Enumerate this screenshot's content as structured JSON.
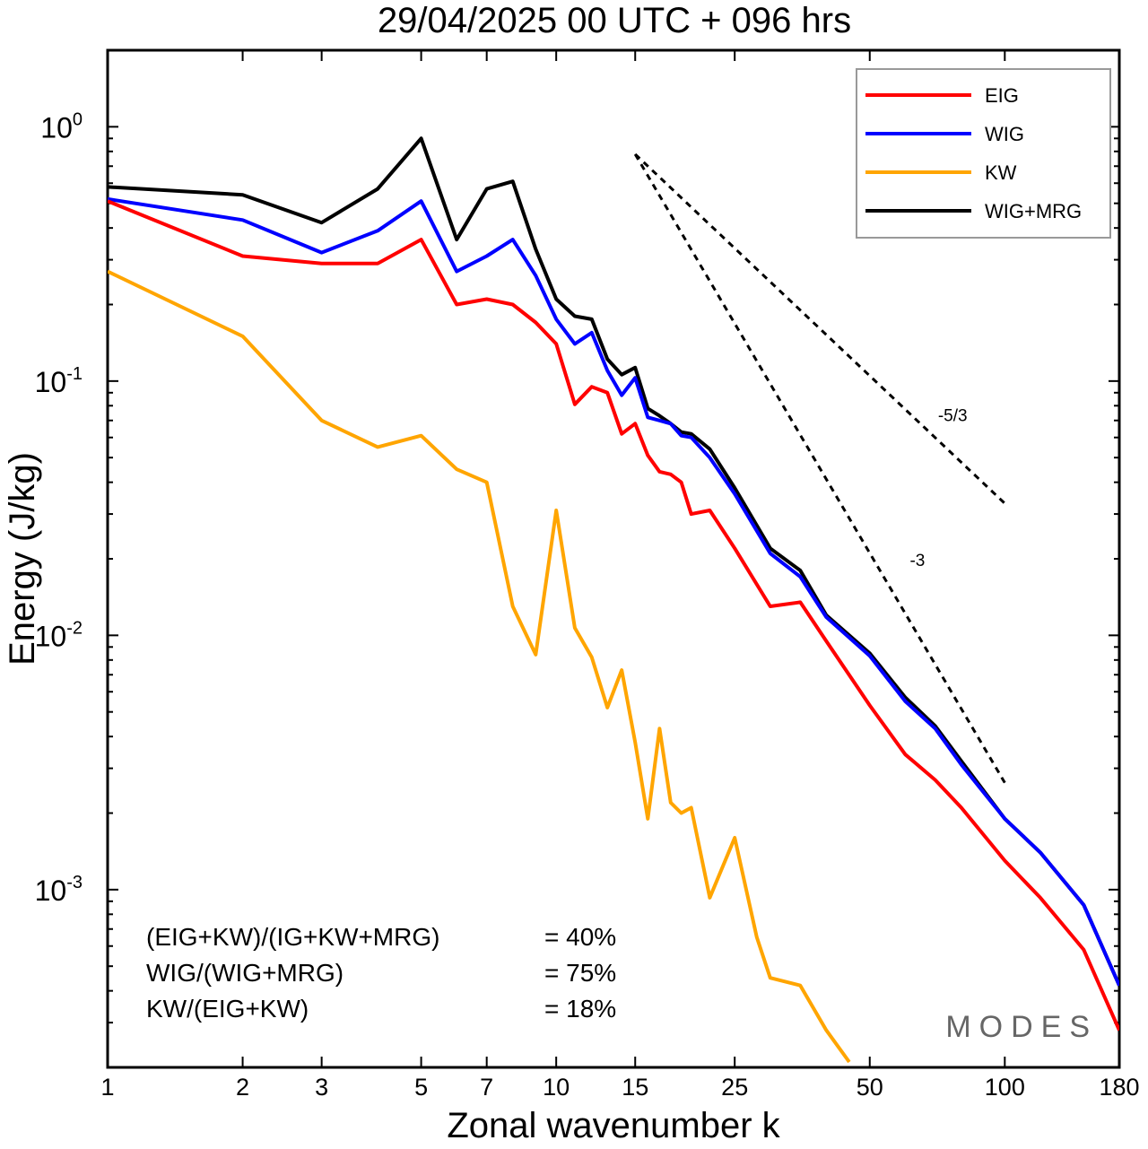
{
  "chart_data": {
    "type": "line",
    "title": "29/04/2025  00 UTC  + 096 hrs",
    "xlabel": "Zonal wavenumber k",
    "ylabel": "Energy (J/kg)",
    "xscale": "log",
    "yscale": "log",
    "xlim": [
      1,
      180
    ],
    "ylim": [
      0.0002,
      2
    ],
    "xticks": [
      1,
      2,
      3,
      5,
      7,
      10,
      15,
      25,
      50,
      100,
      180
    ],
    "xtick_labels": [
      "1",
      "2",
      "3",
      "5",
      "7",
      "10",
      "15",
      "25",
      "50",
      "100",
      "180"
    ],
    "yticks": [
      {
        "value": 1,
        "base": "10",
        "exp": "0"
      },
      {
        "value": 0.1,
        "base": "10",
        "exp": "-1"
      },
      {
        "value": 0.01,
        "base": "10",
        "exp": "-2"
      },
      {
        "value": 0.001,
        "base": "10",
        "exp": "-3"
      }
    ],
    "legend_position": "top-right",
    "series": [
      {
        "name": "EIG",
        "color": "#ff0000",
        "x": [
          1,
          2,
          3,
          4,
          5,
          6,
          7,
          8,
          9,
          10,
          11,
          12,
          13,
          14,
          15,
          16,
          17,
          18,
          19,
          20,
          22,
          25,
          30,
          35,
          40,
          50,
          60,
          70,
          80,
          100,
          120,
          150,
          180
        ],
        "y": [
          0.51,
          0.31,
          0.29,
          0.29,
          0.36,
          0.2,
          0.21,
          0.2,
          0.17,
          0.14,
          0.081,
          0.095,
          0.09,
          0.062,
          0.068,
          0.051,
          0.044,
          0.043,
          0.04,
          0.03,
          0.031,
          0.022,
          0.013,
          0.0135,
          0.0095,
          0.0053,
          0.0034,
          0.0027,
          0.0021,
          0.0013,
          0.00093,
          0.00058,
          0.00028
        ]
      },
      {
        "name": "WIG",
        "color": "#0000ff",
        "x": [
          1,
          2,
          3,
          4,
          5,
          6,
          7,
          8,
          9,
          10,
          11,
          12,
          13,
          14,
          15,
          16,
          17,
          18,
          19,
          20,
          22,
          25,
          30,
          35,
          40,
          50,
          60,
          70,
          80,
          100,
          120,
          150,
          180
        ],
        "y": [
          0.52,
          0.43,
          0.32,
          0.39,
          0.51,
          0.27,
          0.31,
          0.36,
          0.26,
          0.175,
          0.14,
          0.155,
          0.11,
          0.088,
          0.103,
          0.072,
          0.07,
          0.068,
          0.061,
          0.06,
          0.05,
          0.036,
          0.021,
          0.017,
          0.0118,
          0.0083,
          0.0055,
          0.0043,
          0.0031,
          0.0019,
          0.0014,
          0.00087,
          0.00042
        ]
      },
      {
        "name": "KW",
        "color": "#ffa500",
        "x": [
          1,
          2,
          3,
          4,
          5,
          6,
          7,
          8,
          9,
          10,
          11,
          12,
          13,
          14,
          15,
          16,
          17,
          18,
          19,
          20,
          22,
          25,
          28,
          30,
          35,
          40,
          45
        ],
        "y": [
          0.27,
          0.15,
          0.07,
          0.055,
          0.061,
          0.045,
          0.04,
          0.013,
          0.0084,
          0.031,
          0.0107,
          0.0082,
          0.0052,
          0.0073,
          0.0038,
          0.0019,
          0.0043,
          0.0022,
          0.002,
          0.0021,
          0.00093,
          0.0016,
          0.00065,
          0.00045,
          0.00042,
          0.00028,
          0.00021
        ]
      },
      {
        "name": "WIG+MRG",
        "color": "#000000",
        "x": [
          1,
          2,
          3,
          4,
          5,
          6,
          7,
          8,
          9,
          10,
          11,
          12,
          13,
          14,
          15,
          16,
          17,
          18,
          19,
          20,
          22,
          25,
          30,
          35,
          40,
          50,
          60,
          70,
          80,
          100,
          120,
          150,
          180
        ],
        "y": [
          0.58,
          0.54,
          0.42,
          0.57,
          0.9,
          0.36,
          0.57,
          0.61,
          0.33,
          0.21,
          0.18,
          0.175,
          0.122,
          0.106,
          0.113,
          0.078,
          0.073,
          0.068,
          0.063,
          0.062,
          0.054,
          0.038,
          0.022,
          0.018,
          0.012,
          0.0085,
          0.0057,
          0.0044,
          0.0032,
          0.0019,
          0.0014,
          0.00087,
          0.00042
        ]
      }
    ],
    "reference_lines": [
      {
        "label": "-5/3",
        "slope": -1.666667,
        "x": [
          15,
          100
        ],
        "y0": 0.78
      },
      {
        "label": "-3",
        "slope": -3,
        "x": [
          15,
          100
        ],
        "y0": 0.78
      }
    ],
    "annotations": [
      {
        "label": "(EIG+KW)/(IG+KW+MRG)",
        "value": "= 40%"
      },
      {
        "label": "WIG/(WIG+MRG)",
        "value": "= 75%"
      },
      {
        "label": "KW/(EIG+KW)",
        "value": "= 18%"
      }
    ],
    "watermark": "MODES"
  }
}
